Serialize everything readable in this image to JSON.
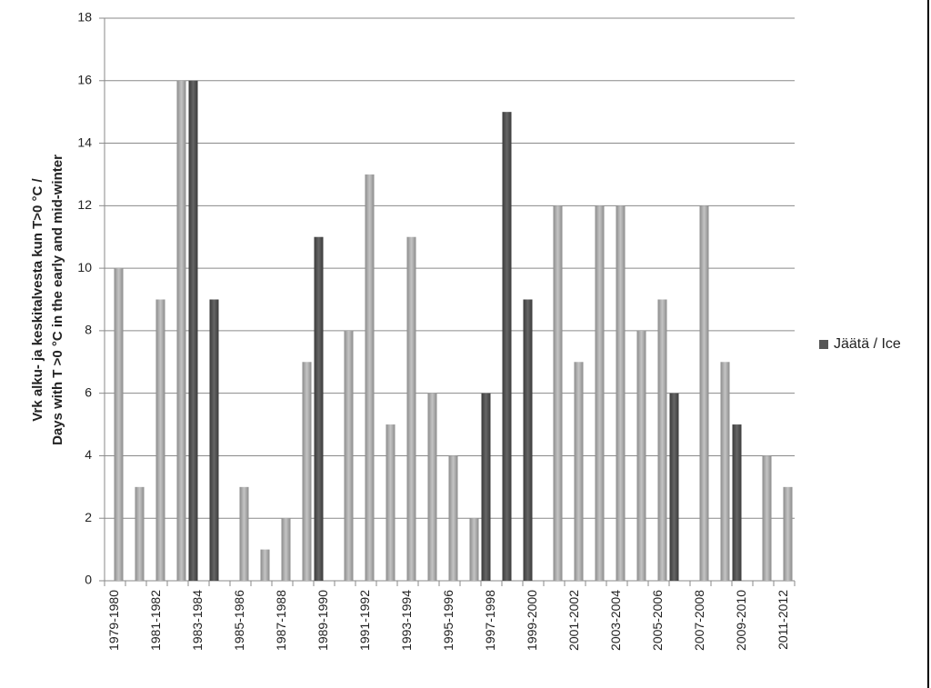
{
  "chart_data": {
    "type": "bar",
    "ylabel": [
      "Vrk alku- ja keskitalvesta kun T>0 °C /",
      "Days with T >0 °C in the early and mid-winter"
    ],
    "categories": [
      "1979-1980",
      null,
      "1981-1982",
      null,
      "1983-1984",
      null,
      "1985-1986",
      null,
      "1987-1988",
      null,
      "1989-1990",
      null,
      "1991-1992",
      null,
      "1993-1994",
      null,
      "1995-1996",
      null,
      "1997-1998",
      null,
      "1999-2000",
      null,
      "2001-2002",
      null,
      "2003-2004",
      null,
      "2005-2006",
      null,
      "2007-2008",
      null,
      "2009-2010",
      null,
      "2011-2012"
    ],
    "series": [
      {
        "color": "#a6a6a6",
        "values": [
          10,
          3,
          9,
          16,
          null,
          null,
          3,
          1,
          2,
          7,
          null,
          8,
          13,
          5,
          11,
          6,
          4,
          2,
          null,
          null,
          null,
          12,
          7,
          12,
          12,
          8,
          9,
          null,
          12,
          7,
          null,
          4,
          3
        ]
      },
      {
        "name": "Jäätä / Ice",
        "color": "#555555",
        "values": [
          null,
          null,
          null,
          null,
          16,
          9,
          null,
          null,
          null,
          null,
          11,
          null,
          null,
          null,
          null,
          null,
          null,
          null,
          6,
          15,
          9,
          null,
          null,
          null,
          null,
          null,
          null,
          6,
          null,
          null,
          5,
          null,
          null
        ]
      }
    ],
    "ylim": [
      0,
      18
    ],
    "yticks": [
      0,
      2,
      4,
      6,
      8,
      10,
      12,
      14,
      16,
      18
    ],
    "grid": true,
    "legend": "right"
  }
}
